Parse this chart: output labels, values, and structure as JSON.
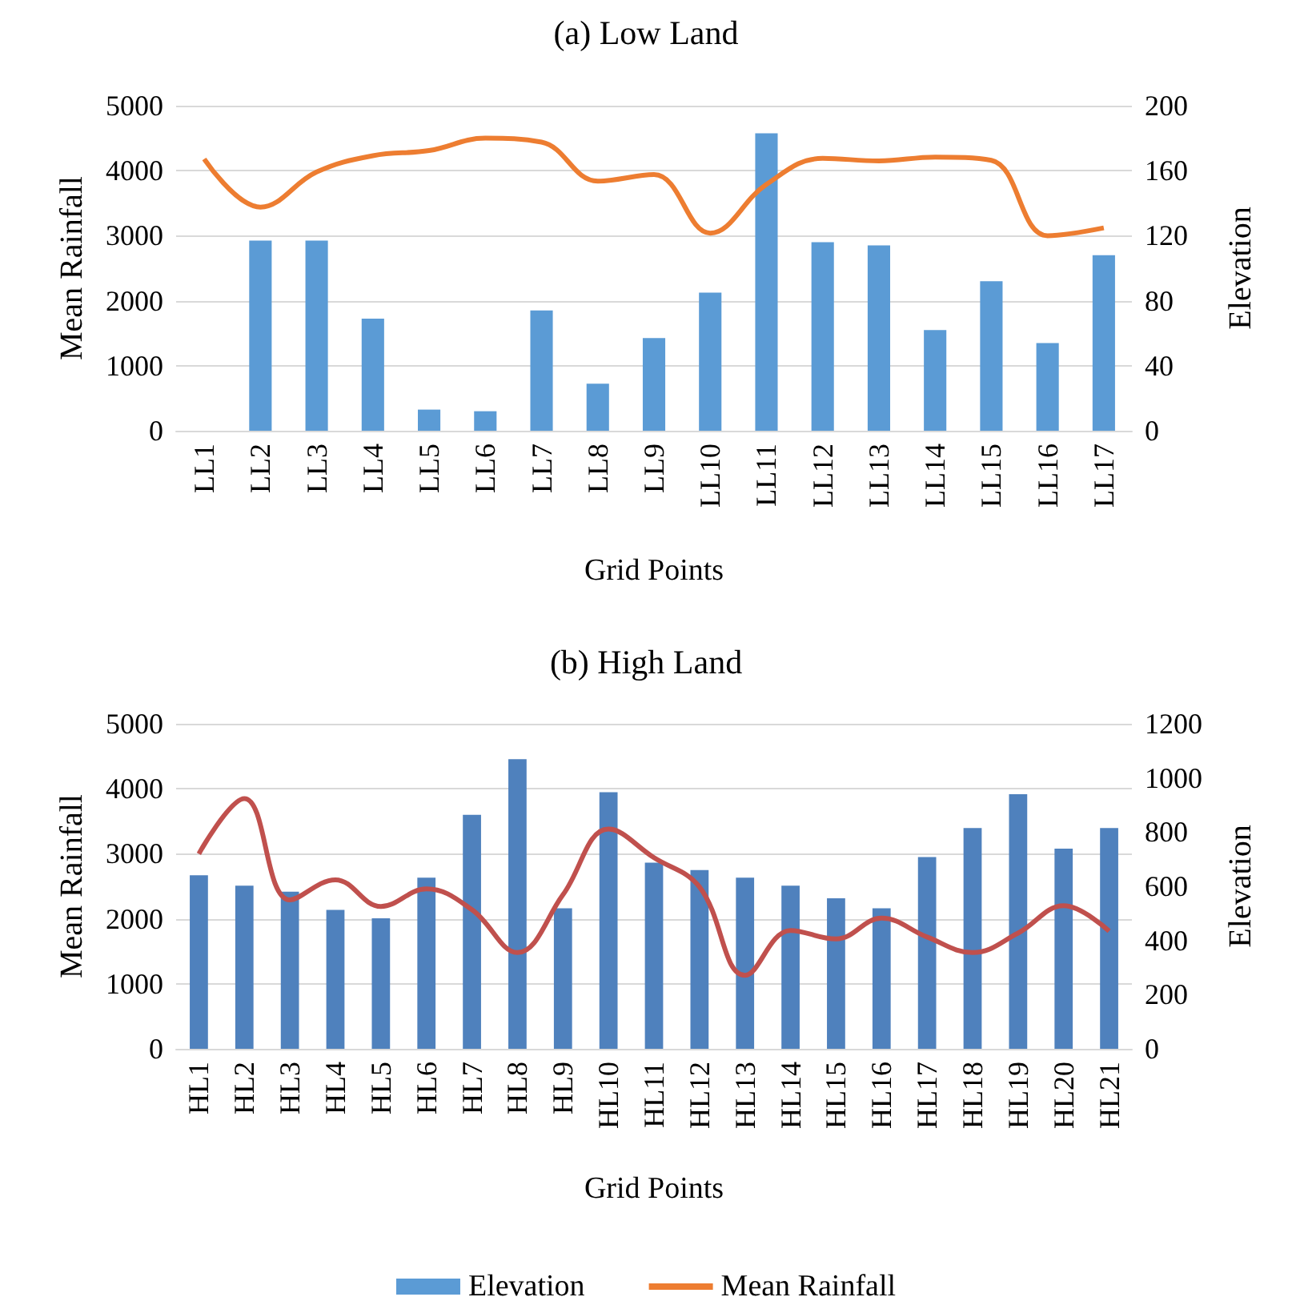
{
  "chart_data": [
    {
      "type": "bar",
      "title": "(a) Low Land",
      "xlabel": "Grid Points",
      "ylabel": "Mean Rainfall",
      "y2label": "Elevation",
      "categories": [
        "LL1",
        "LL2",
        "LL3",
        "LL4",
        "LL5",
        "LL6",
        "LL7",
        "LL8",
        "LL9",
        "LL10",
        "LL11",
        "LL12",
        "LL13",
        "LL14",
        "LL15",
        "LL16",
        "LL17"
      ],
      "series": [
        {
          "name": "Elevation",
          "axis": "y2",
          "color": "#5b9bd5",
          "values": [
            0,
            117,
            117,
            69,
            13,
            12,
            74,
            29,
            57,
            85,
            183,
            116,
            114,
            62,
            92,
            54,
            108
          ]
        },
        {
          "name": "Mean Rainfall",
          "type": "line",
          "color": "#ed7d31",
          "values": [
            4180,
            3440,
            3980,
            4230,
            4310,
            4500,
            4440,
            3840,
            3940,
            3040,
            3790,
            4190,
            4150,
            4210,
            4160,
            3000,
            3120
          ]
        }
      ],
      "ylim": [
        0,
        5000
      ],
      "yticks": [
        0,
        1000,
        2000,
        3000,
        4000,
        5000
      ],
      "y2lim": [
        0,
        200
      ],
      "y2ticks": [
        0,
        40,
        80,
        120,
        160,
        200
      ],
      "grid": "y",
      "legend": "bottom",
      "marker": "none"
    },
    {
      "type": "bar",
      "title": "(b) High Land",
      "xlabel": "Grid Points",
      "ylabel": "Mean Rainfall",
      "y2label": "Elevation",
      "categories": [
        "HL1",
        "HL2",
        "HL3",
        "HL4",
        "HL5",
        "HL6",
        "HL7",
        "HL8",
        "HL9",
        "HL10",
        "HL11",
        "HL12",
        "HL13",
        "HL14",
        "HL15",
        "HL16",
        "HL17",
        "HL18",
        "HL19",
        "HL20",
        "HL21"
      ],
      "series": [
        {
          "axis": "y2",
          "color": "#4f81bd",
          "values": [
            641,
            602,
            580,
            513,
            482,
            632,
            864,
            1069,
            519,
            947,
            687,
            660,
            632,
            602,
            556,
            519,
            708,
            815,
            940,
            739,
            815
          ]
        },
        {
          "type": "line",
          "color": "#c0504d",
          "values": [
            3000,
            3850,
            2290,
            2600,
            2190,
            2460,
            2140,
            1480,
            2370,
            3380,
            2940,
            2490,
            1130,
            1820,
            1690,
            2010,
            1720,
            1480,
            1780,
            2200,
            1810
          ]
        }
      ],
      "ylim": [
        0,
        5000
      ],
      "yticks": [
        0,
        1000,
        2000,
        3000,
        4000,
        5000
      ],
      "y2lim": [
        0,
        1200
      ],
      "y2ticks": [
        0,
        200,
        400,
        600,
        800,
        1000,
        1200
      ],
      "grid": "y",
      "marker": "none"
    }
  ]
}
